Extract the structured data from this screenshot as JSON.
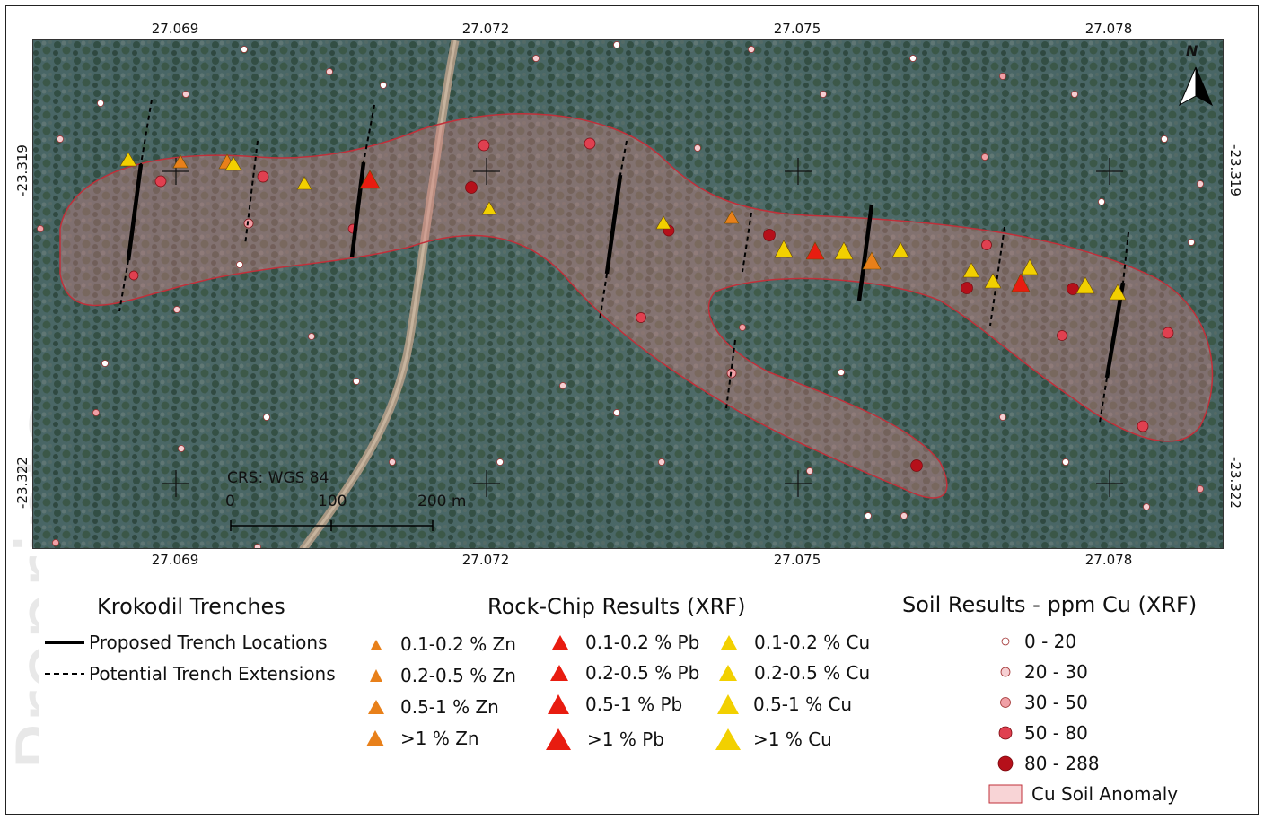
{
  "map": {
    "crs_label": "CRS: WGS 84",
    "scale_bar": {
      "labels": [
        "0",
        "100",
        "200 m"
      ]
    },
    "north_arrow_label": "N",
    "x_ticks": [
      "27.069",
      "27.072",
      "27.075",
      "27.078"
    ],
    "y_ticks": [
      "-23.319",
      "-23.322"
    ],
    "colors": {
      "trench": "#000000",
      "anomaly_fill": "#d98080",
      "anomaly_stroke": "#c0303a",
      "zn": "#e8801a",
      "pb": "#e81c10",
      "cu": "#f2d000",
      "soil_0_20": "#ffffff",
      "soil_20_30": "#f6cfd2",
      "soil_30_50": "#f0a0a6",
      "soil_50_80": "#e04050",
      "soil_80_288": "#b5101a"
    }
  },
  "legend": {
    "trenches": {
      "title": "Krokodil Trenches",
      "items": [
        "Proposed Trench Locations",
        "Potential Trench Extensions"
      ]
    },
    "rock_chip": {
      "title": "Rock-Chip Results (XRF)",
      "zn": [
        "0.1-0.2 % Zn",
        "0.2-0.5 % Zn",
        "0.5-1 % Zn",
        ">1 % Zn"
      ],
      "pb": [
        "0.1-0.2 % Pb",
        "0.2-0.5 % Pb",
        "0.5-1 % Pb",
        ">1 % Pb"
      ],
      "cu": [
        "0.1-0.2 % Cu",
        "0.2-0.5 % Cu",
        "0.5-1 % Cu",
        ">1 % Cu"
      ]
    },
    "soil": {
      "title": "Soil Results - ppm Cu (XRF)",
      "items": [
        "0 - 20",
        "20 - 30",
        "30 - 50",
        "50 - 80",
        "80 - 288"
      ],
      "anomaly": "Cu Soil Anomaly"
    }
  }
}
